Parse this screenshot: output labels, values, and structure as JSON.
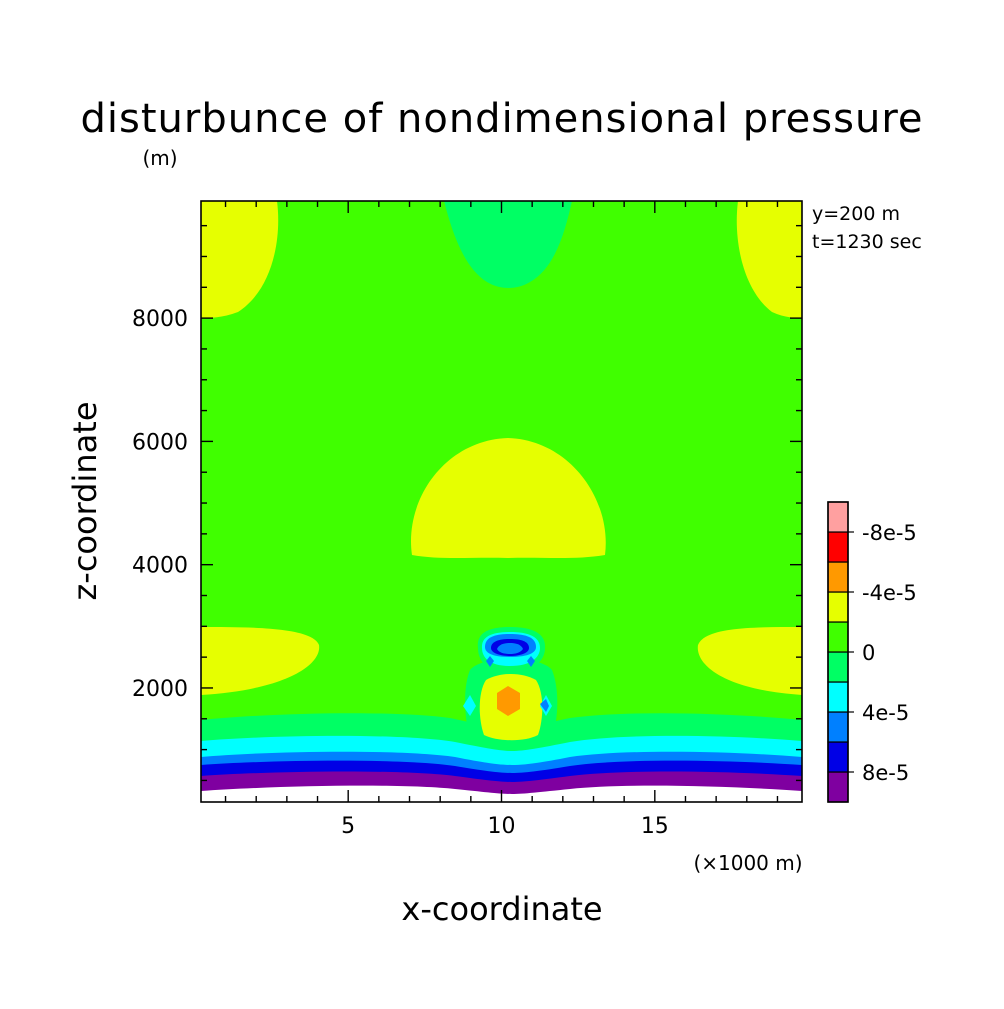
{
  "chart_data": {
    "type": "heatmap",
    "title": "disturbunce of nondimensional pressure",
    "ylabel": "z-coordinate",
    "yunit": "(m)",
    "xlabel": "x-coordinate",
    "xunit": "(×1000 m)",
    "xlim": [
      0.2,
      19.8
    ],
    "ylim": [
      150,
      9900
    ],
    "xticks": [
      5,
      10,
      15
    ],
    "xtick_labels": [
      "5",
      "10",
      "15"
    ],
    "yticks": [
      2000,
      4000,
      6000,
      8000
    ],
    "ytick_labels": [
      "2000",
      "4000",
      "6000",
      "8000"
    ],
    "annotations": [
      "y=200 m",
      "t=1230 sec"
    ],
    "colorbar": {
      "levels": [
        -0.0001,
        -8e-05,
        -6e-05,
        -4e-05,
        -2e-05,
        0,
        2e-05,
        4e-05,
        6e-05,
        8e-05,
        0.0001
      ],
      "colors": [
        "#7f00a0",
        "#0000e6",
        "#0080ff",
        "#00ffff",
        "#00ff64",
        "#40ff00",
        "#e6ff00",
        "#ff9900",
        "#ff0000",
        "#ffa0a0"
      ],
      "tick_levels": [
        -8e-05,
        -4e-05,
        0,
        4e-05,
        8e-05
      ],
      "tick_labels": [
        "-8e-5",
        "-4e-5",
        "0",
        "4e-5",
        "8e-5"
      ]
    },
    "contour_regions": [
      {
        "level": "2e-5 to 4e-5",
        "x": [
          0.2,
          2.5
        ],
        "y": [
          8100,
          9900
        ]
      },
      {
        "level": "2e-5 to 4e-5",
        "x": [
          17.5,
          19.8
        ],
        "y": [
          8100,
          9900
        ]
      },
      {
        "level": "0 to 2e-5",
        "x": [
          8.0,
          12.0
        ],
        "y": [
          8500,
          9900
        ]
      },
      {
        "level": "2e-5 to 4e-5",
        "x": [
          6.9,
          13.3
        ],
        "y": [
          4100,
          6000
        ]
      },
      {
        "level": "2e-5 to 4e-5",
        "x": [
          0.2,
          4.0
        ],
        "y": [
          1700,
          2900
        ]
      },
      {
        "level": "2e-5 to 4e-5",
        "x": [
          16.0,
          19.8
        ],
        "y": [
          1700,
          2900
        ]
      },
      {
        "level": "-8e-5 to -4e-5",
        "x": [
          9.4,
          11.0
        ],
        "y": [
          2400,
          2700
        ]
      },
      {
        "level": "4e-5 to 6e-5",
        "x": [
          9.7,
          10.6
        ],
        "y": [
          1500,
          1900
        ]
      },
      {
        "level": "-1e-4 to -8e-5",
        "x": [
          0.2,
          19.8
        ],
        "y": [
          300,
          500
        ]
      }
    ]
  }
}
